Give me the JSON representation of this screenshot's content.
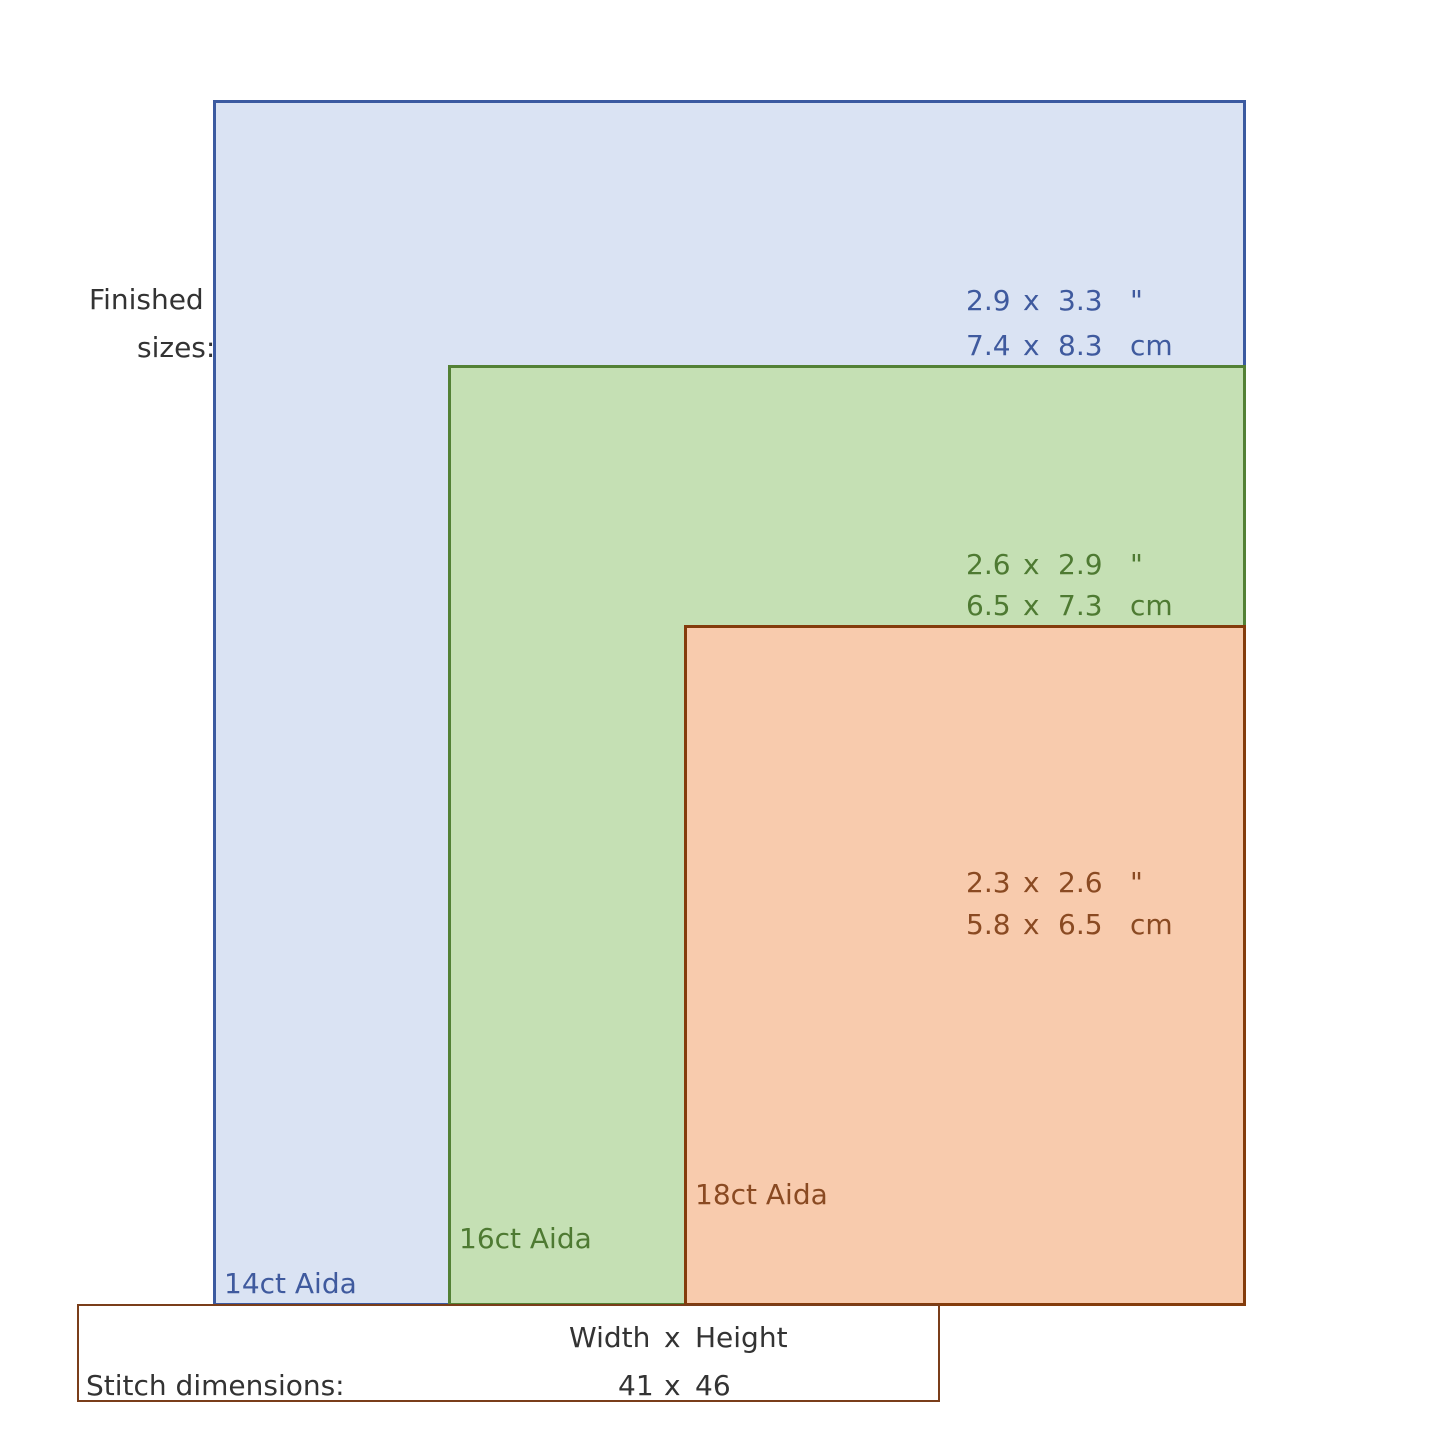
{
  "finished_sizes_label": [
    "Finished",
    "sizes:"
  ],
  "fabrics": [
    {
      "label": "14ct Aida",
      "inches": {
        "w": "2.9",
        "x": "x",
        "h": "3.3",
        "unit": "\""
      },
      "cm": {
        "w": "7.4",
        "x": "x",
        "h": "8.3",
        "unit": "cm"
      },
      "border_color": "#3b5aa0",
      "fill_color": "#dae3f3",
      "text_color": "#3f5a9e"
    },
    {
      "label": "16ct Aida",
      "inches": {
        "w": "2.6",
        "x": "x",
        "h": "2.9",
        "unit": "\""
      },
      "cm": {
        "w": "6.5",
        "x": "x",
        "h": "7.3",
        "unit": "cm"
      },
      "border_color": "#538135",
      "fill_color": "#c5e0b4",
      "text_color": "#4e7a32"
    },
    {
      "label": "18ct Aida",
      "inches": {
        "w": "2.3",
        "x": "x",
        "h": "2.6",
        "unit": "\""
      },
      "cm": {
        "w": "5.8",
        "x": "x",
        "h": "6.5",
        "unit": "cm"
      },
      "border_color": "#843c0c",
      "fill_color": "#f8cbad",
      "text_color": "#8a4a22"
    }
  ],
  "stitch": {
    "header": {
      "w": "Width",
      "x": "x",
      "h": "Height"
    },
    "label": "Stitch dimensions:",
    "values": {
      "w": "41",
      "x": "x",
      "h": "46"
    },
    "border_color": "#7a3e1a"
  }
}
